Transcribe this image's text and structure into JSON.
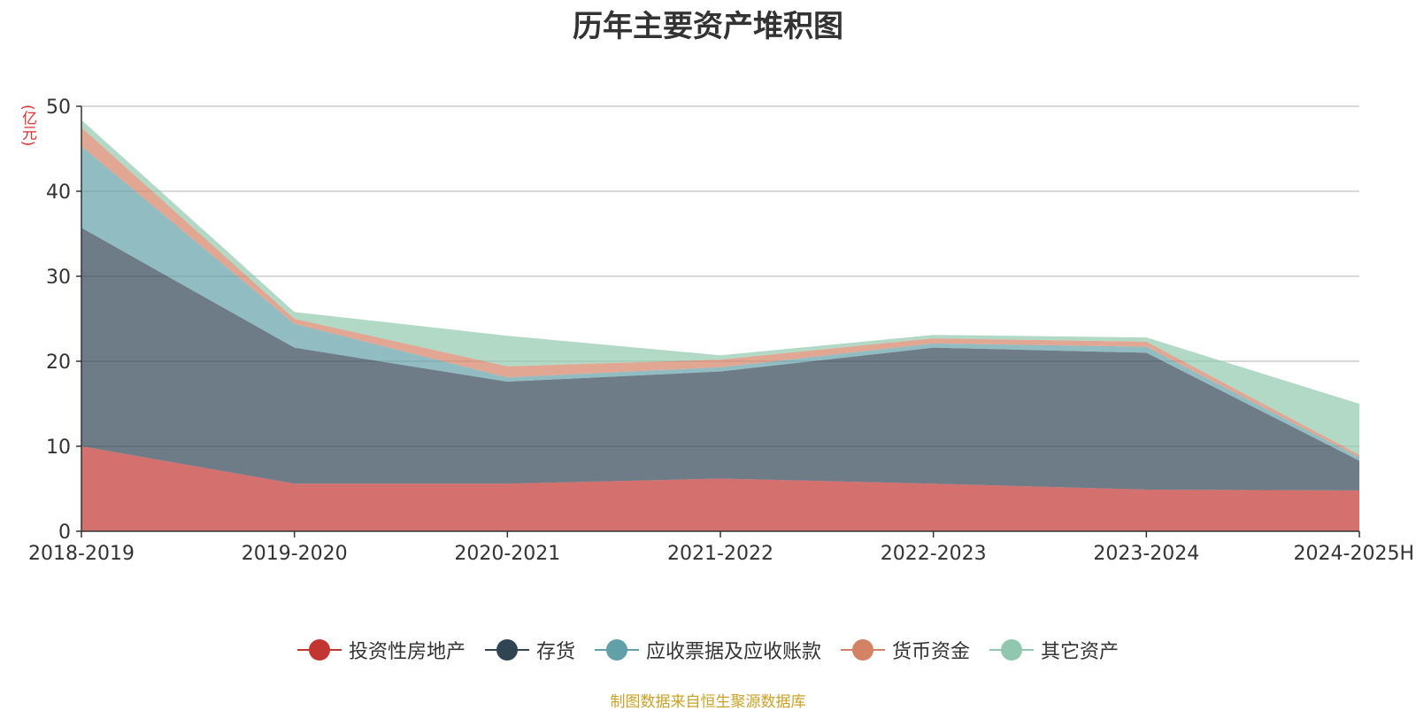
{
  "chart_data": {
    "type": "area",
    "stacked": true,
    "title": "历年主要资产堆积图",
    "unit_label": "(亿元)",
    "categories": [
      "2018-2019",
      "2019-2020",
      "2020-2021",
      "2021-2022",
      "2022-2023",
      "2023-2024",
      "2024-2025H"
    ],
    "ylim": [
      0,
      50
    ],
    "yticks": [
      0,
      10,
      20,
      30,
      40,
      50
    ],
    "grid": true,
    "legend_position": "bottom",
    "series": [
      {
        "name": "投资性房地产",
        "color": "#c23531",
        "values": [
          10.0,
          5.6,
          5.6,
          6.2,
          5.6,
          4.9,
          4.8
        ]
      },
      {
        "name": "存货",
        "color": "#2f4554",
        "values": [
          25.7,
          16.0,
          12.0,
          12.6,
          16.0,
          16.1,
          3.5
        ]
      },
      {
        "name": "应收票据及应收账款",
        "color": "#61a0a8",
        "values": [
          9.6,
          2.8,
          0.5,
          0.5,
          0.5,
          0.7,
          0.4
        ]
      },
      {
        "name": "货币资金",
        "color": "#d48265",
        "values": [
          2.2,
          0.6,
          1.3,
          0.9,
          0.6,
          0.6,
          0.3
        ]
      },
      {
        "name": "其它资产",
        "color": "#91c7ae",
        "values": [
          0.9,
          0.8,
          3.6,
          0.5,
          0.4,
          0.5,
          6.0
        ]
      }
    ],
    "source_note": "制图数据来自恒生聚源数据库"
  }
}
